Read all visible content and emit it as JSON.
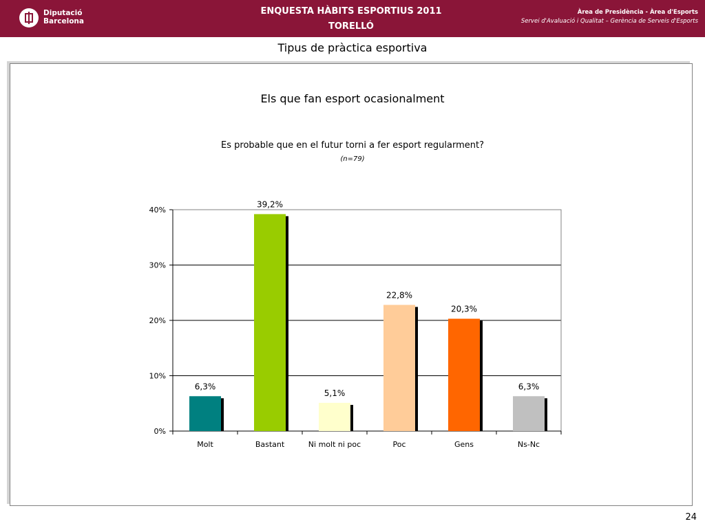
{
  "header": {
    "logo_line1": "Diputació",
    "logo_line2": "Barcelona",
    "title_line1": "ENQUESTA HÀBITS ESPORTIUS 2011",
    "title_line2": "TORELLÓ",
    "right_line1": "Àrea de Presidència  -  Àrea d'Esports",
    "right_line2": "Servei d'Avaluació i Qualitat – Gerència de Serveis d'Esports"
  },
  "page_title": "Tipus de pràctica esportiva",
  "page_number": "24",
  "chart_data": {
    "type": "bar",
    "title": "Els que fan esport ocasionalment",
    "subtitle": "Es probable que en el futur torni a fer esport regularment?",
    "sample_label": "(n=79)",
    "categories": [
      "Molt",
      "Bastant",
      "Ni molt ni poc",
      "Poc",
      "Gens",
      "Ns-Nc"
    ],
    "values": [
      6.3,
      39.2,
      5.1,
      22.8,
      20.3,
      6.3
    ],
    "value_labels": [
      "6,3%",
      "39,2%",
      "5,1%",
      "22,8%",
      "20,3%",
      "6,3%"
    ],
    "colors": [
      "#008080",
      "#99cc00",
      "#ffffcc",
      "#ffcc99",
      "#ff6600",
      "#c0c0c0"
    ],
    "yticks": [
      0,
      10,
      20,
      30,
      40
    ],
    "ytick_labels": [
      "0%",
      "10%",
      "20%",
      "30%",
      "40%"
    ],
    "ylim": [
      0,
      40
    ],
    "xlabel": "",
    "ylabel": "",
    "grid": true,
    "legend": "none"
  }
}
